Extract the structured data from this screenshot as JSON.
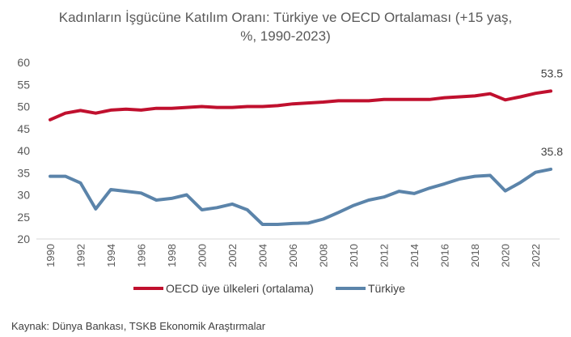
{
  "chart_data": {
    "type": "line",
    "title_line1": "Kadınların İşgücüne Katılım Oranı: Türkiye ve OECD Ortalaması (+15 yaş,",
    "title_line2": "%, 1990-2023)",
    "xlabel": "",
    "ylabel": "",
    "ylim": [
      20,
      60
    ],
    "yticks": [
      "20",
      "25",
      "30",
      "35",
      "40",
      "45",
      "50",
      "55",
      "60"
    ],
    "xticks": [
      "1990",
      "1992",
      "1994",
      "1996",
      "1998",
      "2000",
      "2002",
      "2004",
      "2006",
      "2008",
      "2010",
      "2012",
      "2014",
      "2016",
      "2018",
      "2020",
      "2022"
    ],
    "x": [
      1990,
      1991,
      1992,
      1993,
      1994,
      1995,
      1996,
      1997,
      1998,
      1999,
      2000,
      2001,
      2002,
      2003,
      2004,
      2005,
      2006,
      2007,
      2008,
      2009,
      2010,
      2011,
      2012,
      2013,
      2014,
      2015,
      2016,
      2017,
      2018,
      2019,
      2020,
      2021,
      2022,
      2023
    ],
    "grid": false,
    "legend_position": "bottom",
    "series": [
      {
        "name": "OECD üye ülkeleri (ortalama)",
        "color": "#C0102E",
        "end_label": "53.5",
        "values": [
          47.0,
          48.5,
          49.1,
          48.5,
          49.2,
          49.4,
          49.2,
          49.6,
          49.6,
          49.8,
          50.0,
          49.8,
          49.8,
          50.0,
          50.0,
          50.2,
          50.6,
          50.8,
          51.0,
          51.3,
          51.3,
          51.3,
          51.6,
          51.6,
          51.6,
          51.6,
          52.0,
          52.2,
          52.4,
          52.9,
          51.5,
          52.2,
          53.0,
          53.5
        ]
      },
      {
        "name": "Türkiye",
        "color": "#5B84AA",
        "end_label": "35.8",
        "values": [
          34.2,
          34.2,
          32.7,
          26.8,
          31.2,
          30.8,
          30.4,
          28.8,
          29.2,
          30.0,
          26.6,
          27.1,
          27.9,
          26.6,
          23.3,
          23.3,
          23.5,
          23.6,
          24.5,
          26.0,
          27.6,
          28.8,
          29.5,
          30.8,
          30.3,
          31.5,
          32.5,
          33.6,
          34.2,
          34.4,
          30.9,
          32.8,
          35.1,
          35.8
        ]
      }
    ]
  },
  "source": "Kaynak: Dünya Bankası, TSKB Ekonomik Araştırmalar"
}
